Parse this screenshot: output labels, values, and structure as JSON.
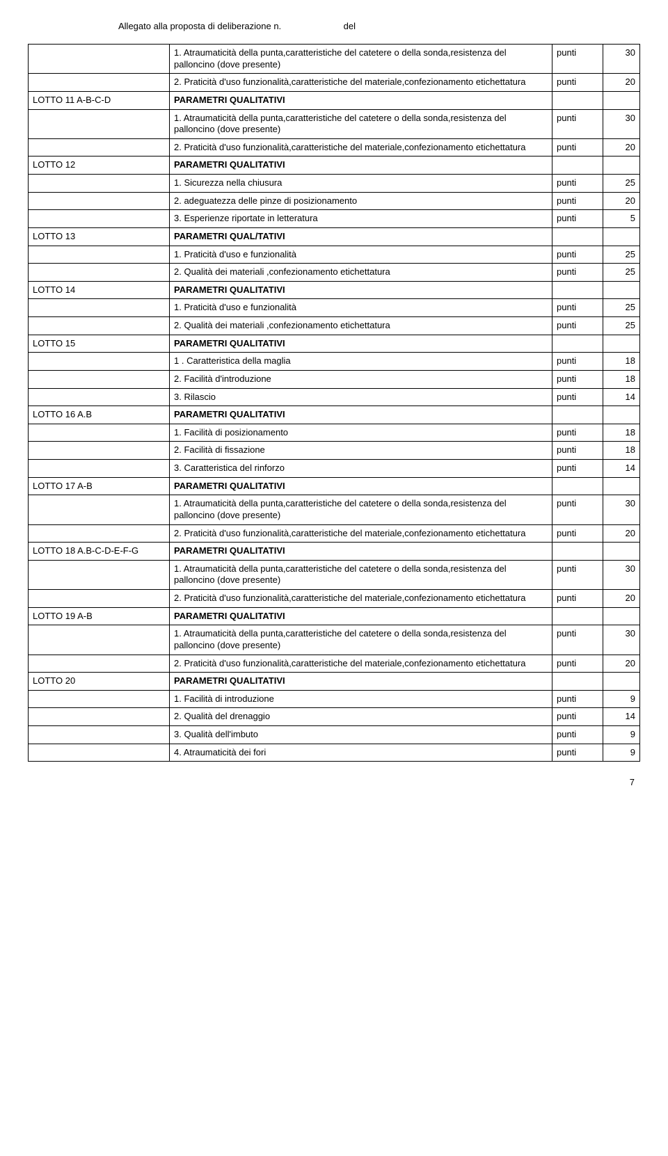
{
  "header": {
    "left": "Allegato  alla proposta di deliberazione n.",
    "right": "del"
  },
  "labels": {
    "punti": "punti",
    "param_qual": "PARAMETRI QUALITATIVI",
    "param_qual_typo": "PARAMETRI QUAL/TATIVI"
  },
  "text": {
    "atraum": "1. Atraumaticità della punta,caratteristiche del catetere o della sonda,resistenza del palloncino (dove presente)",
    "pratic": "2. Praticità d'uso funzionalità,caratteristiche del materiale,confezionamento etichettatura",
    "sicurezza": "1. Sicurezza nella chiusura",
    "adeguatezza": "2. adeguatezza delle pinze di posizionamento",
    "esperienze": "3. Esperienze riportate in letteratura",
    "praticita_uso": "1. Praticità d'uso e funzionalità",
    "qualita_mat": "2. Qualità dei materiali ,confezionamento etichettatura",
    "carat_maglia": "1 . Caratteristica della maglia",
    "facil_intro": "2. Facilità d'introduzione",
    "rilascio": "3. Rilascio",
    "facil_posiz": "1. Facilità di posizionamento",
    "facil_fiss": "2. Facilità di fissazione",
    "carat_rinforzo": "3. Caratteristica del rinforzo",
    "facil_intro1": "1. Facilità di introduzione",
    "qual_drenaggio": "2. Qualità del drenaggio",
    "qual_imbuto": "3. Qualità dell'imbuto",
    "atraum_fori": "4. Atraumaticità dei fori"
  },
  "lotti": {
    "l11": "LOTTO 11 A-B-C-D",
    "l12": "LOTTO 12",
    "l13": "LOTTO 13",
    "l14": "LOTTO 14",
    "l15": "LOTTO 15",
    "l16": "LOTTO 16 A.B",
    "l17": "LOTTO 17 A-B",
    "l18": "LOTTO 18 A.B-C-D-E-F-G",
    "l19": "LOTTO 19 A-B",
    "l20": "LOTTO 20"
  },
  "vals": {
    "v30": "30",
    "v20": "20",
    "v25": "25",
    "v5": "5",
    "v18": "18",
    "v14": "14",
    "v9": "9"
  },
  "page": "7"
}
